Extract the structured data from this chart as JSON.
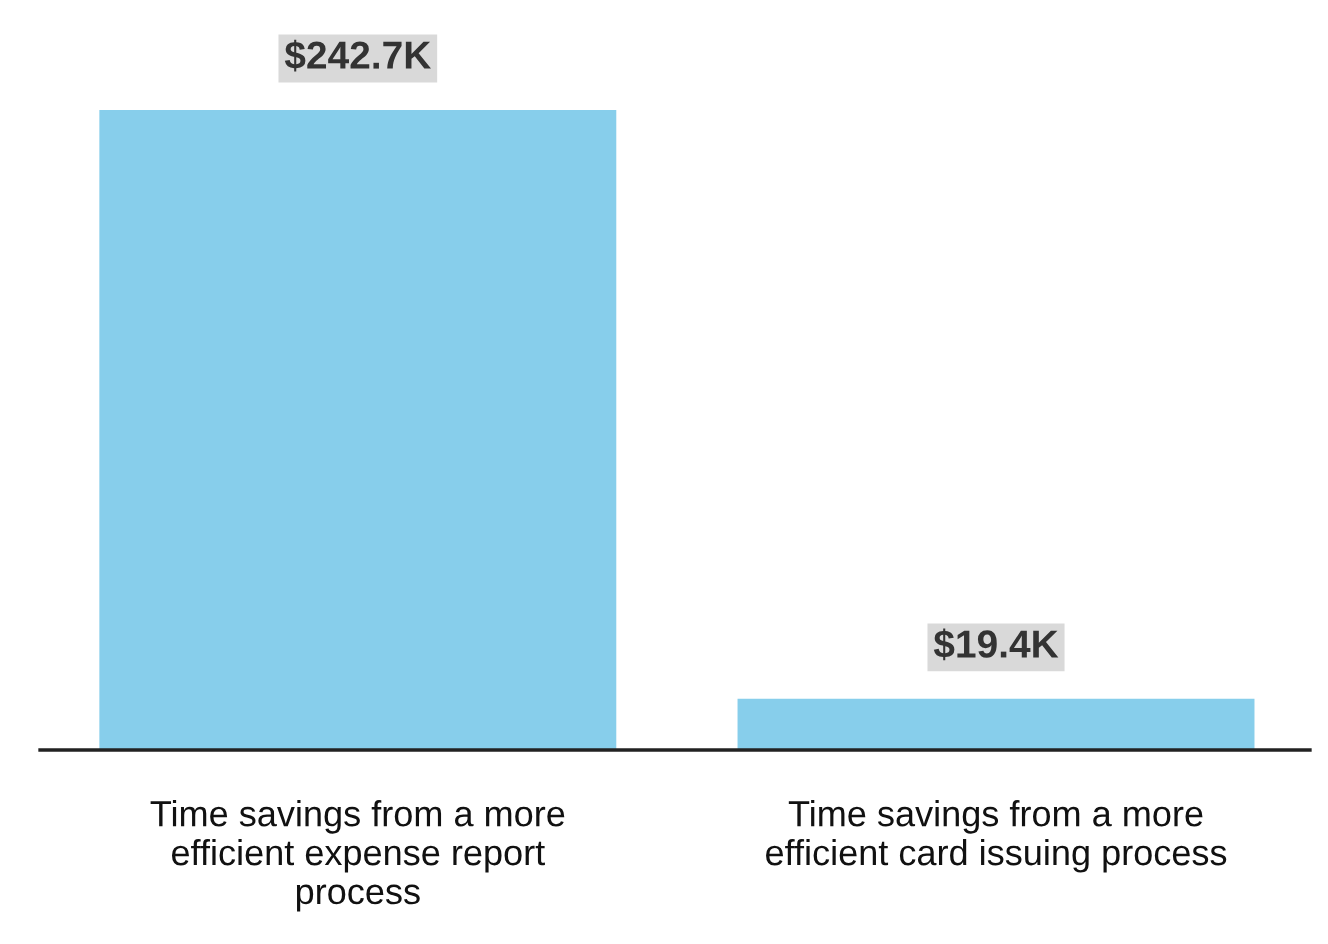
{
  "chart_data": {
    "type": "bar",
    "categories": [
      "Time savings from a more efficient expense report process",
      "Time savings from a more efficient card issuing process"
    ],
    "values": [
      242.7,
      19.4
    ],
    "value_labels": [
      "$242.7K",
      "$19.4K"
    ],
    "color": "#87ceeb"
  }
}
